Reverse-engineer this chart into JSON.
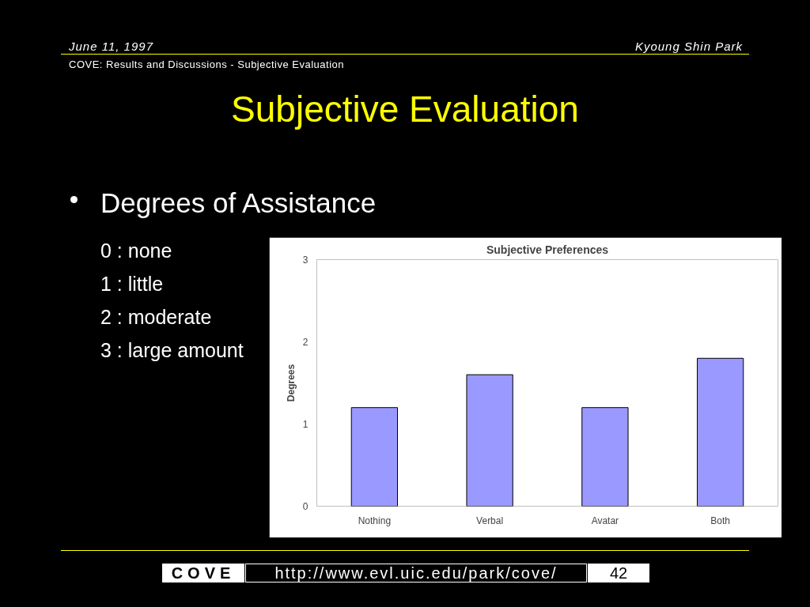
{
  "chart_data": {
    "type": "bar",
    "title": "Subjective Preferences",
    "ylabel": "Degrees",
    "categories": [
      "Nothing",
      "Verbal",
      "Avatar",
      "Both"
    ],
    "values": [
      1.2,
      1.6,
      1.2,
      1.8
    ],
    "color": "#9999ff",
    "ylim": [
      0,
      3
    ],
    "yticks": [
      0,
      1,
      2,
      3
    ],
    "grid": false,
    "annotations": [
      "June 11, 1997",
      "Kyoung Shin Park",
      "COVE: Results and Discussions - Subjective Evaluation",
      "Subjective Evaluation",
      "Degrees of Assistance",
      "0 : none",
      "1 : little",
      "2 : moderate",
      "3 : large amount",
      "COVE",
      "http://www.evl.uic.edu/park/cove/",
      "42"
    ]
  }
}
